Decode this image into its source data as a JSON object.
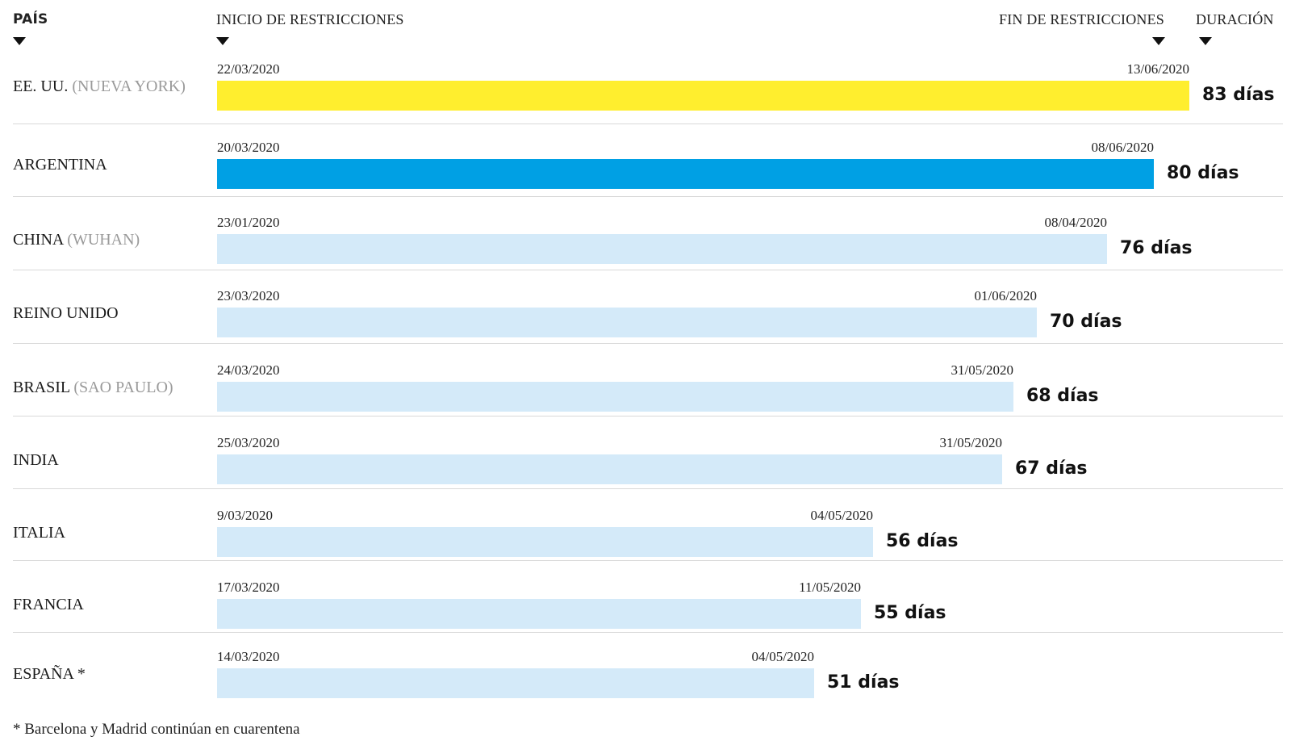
{
  "headers": {
    "country": "PAÍS",
    "start": "INICIO DE RESTRICCIONES",
    "end": "FIN DE RESTRICCIONES",
    "duration": "DURACIÓN"
  },
  "footnote": "* Barcelona y Madrid continúan en cuarentena",
  "colors": {
    "highlight_usa": "#ffee2e",
    "highlight_argentina": "#00a0e4",
    "default_bar": "#d4eaf9",
    "separator": "#d9d9d9",
    "note_text": "#9a9a9a"
  },
  "chart_data": {
    "type": "bar",
    "orientation": "horizontal",
    "x_unit": "días",
    "rows": [
      {
        "country": "EE. UU.",
        "region": "(NUEVA YORK)",
        "start": "22/03/2020",
        "end": "13/06/2020",
        "days": 83,
        "duration_label": "83 días",
        "color": "#ffee2e"
      },
      {
        "country": "ARGENTINA",
        "region": "",
        "start": "20/03/2020",
        "end": "08/06/2020",
        "days": 80,
        "duration_label": "80 días",
        "color": "#00a0e4"
      },
      {
        "country": "CHINA",
        "region": "(WUHAN)",
        "start": "23/01/2020",
        "end": "08/04/2020",
        "days": 76,
        "duration_label": "76 días",
        "color": "#d4eaf9"
      },
      {
        "country": "REINO UNIDO",
        "region": "",
        "start": "23/03/2020",
        "end": "01/06/2020",
        "days": 70,
        "duration_label": "70 días",
        "color": "#d4eaf9"
      },
      {
        "country": "BRASIL",
        "region": "(SAO PAULO)",
        "start": "24/03/2020",
        "end": "31/05/2020",
        "days": 68,
        "duration_label": "68 días",
        "color": "#d4eaf9"
      },
      {
        "country": "INDIA",
        "region": "",
        "start": "25/03/2020",
        "end": "31/05/2020",
        "days": 67,
        "duration_label": "67 días",
        "color": "#d4eaf9"
      },
      {
        "country": "ITALIA",
        "region": "",
        "start": "9/03/2020",
        "end": "04/05/2020",
        "days": 56,
        "duration_label": "56 días",
        "color": "#d4eaf9"
      },
      {
        "country": "FRANCIA",
        "region": "",
        "start": "17/03/2020",
        "end": "11/05/2020",
        "days": 55,
        "duration_label": "55 días",
        "color": "#d4eaf9"
      },
      {
        "country": "ESPAÑA *",
        "region": "",
        "start": "14/03/2020",
        "end": "04/05/2020",
        "days": 51,
        "duration_label": "51 días",
        "color": "#d4eaf9"
      }
    ]
  }
}
